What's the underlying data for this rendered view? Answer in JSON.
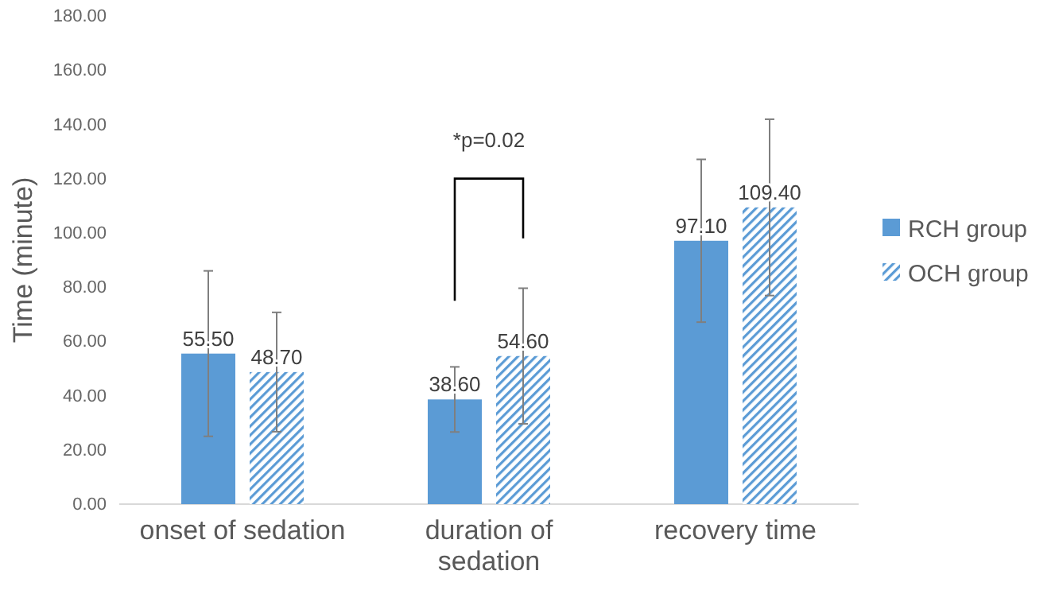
{
  "chart_data": {
    "type": "bar",
    "ylabel": "Time (minute)",
    "categories": [
      "onset of sedation",
      "duration of sedation",
      "recovery time"
    ],
    "series": [
      {
        "name": "RCH group",
        "color": "#5b9bd5",
        "values": [
          55.5,
          38.6,
          97.1
        ],
        "errors": [
          30.5,
          12,
          30
        ],
        "value_labels": [
          "55.50",
          "38.60",
          "97.10"
        ]
      },
      {
        "name": "OCH group",
        "color": "#5b9bd5",
        "values": [
          48.7,
          54.6,
          109.4
        ],
        "errors": [
          22,
          25,
          32.5
        ],
        "value_labels": [
          "48.70",
          "54.60",
          "109.40"
        ]
      }
    ],
    "ylim": [
      0,
      180
    ],
    "yticks": [
      {
        "value": 0,
        "label": "0.00"
      },
      {
        "value": 20,
        "label": "20.00"
      },
      {
        "value": 40,
        "label": "40.00"
      },
      {
        "value": 60,
        "label": "60.00"
      },
      {
        "value": 80,
        "label": "80.00"
      },
      {
        "value": 100,
        "label": "100.00"
      },
      {
        "value": 120,
        "label": "120.00"
      },
      {
        "value": 140,
        "label": "140.00"
      },
      {
        "value": 160,
        "label": "160.00"
      },
      {
        "value": 180,
        "label": "180.00"
      }
    ],
    "annotations": [
      "*p=0.02"
    ],
    "legend": "right"
  }
}
